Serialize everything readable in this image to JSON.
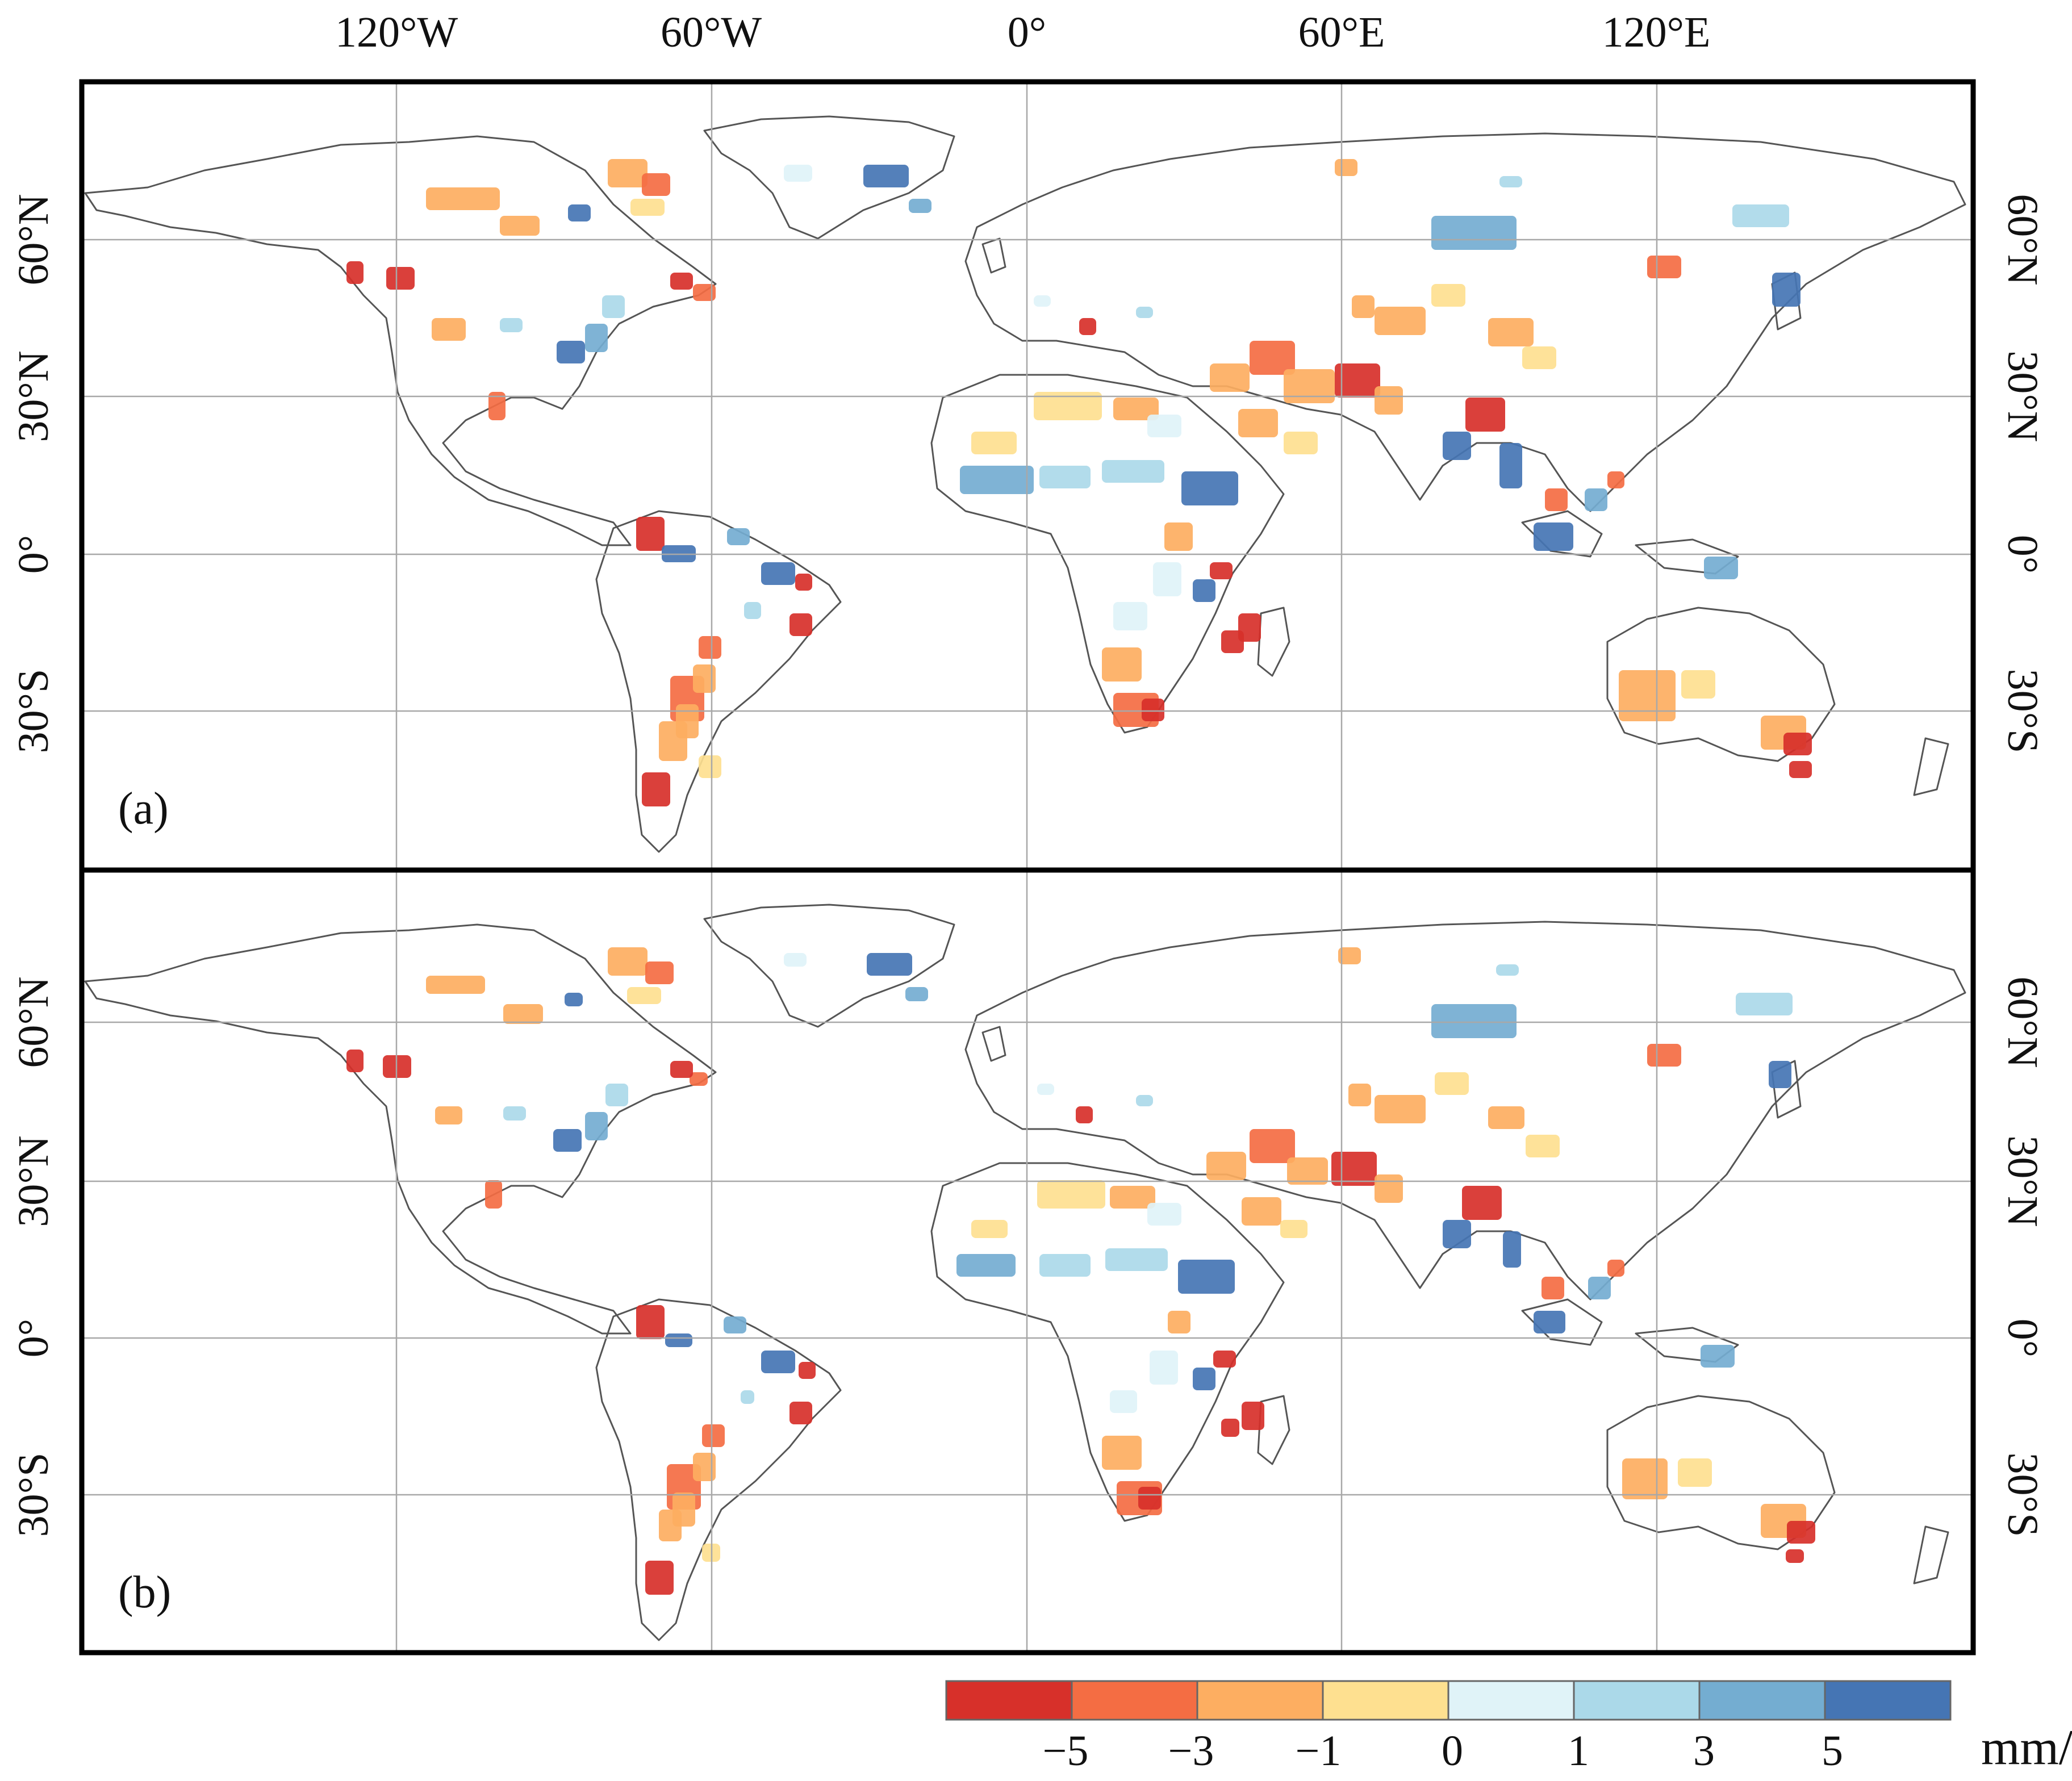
{
  "figure": {
    "longitude_labels": [
      "120°W",
      "60°W",
      "0°",
      "60°E",
      "120°E"
    ],
    "latitude_labels": [
      "60°N",
      "30°N",
      "0°",
      "30°S"
    ],
    "panels": [
      {
        "label": "(a)"
      },
      {
        "label": "(b)"
      }
    ]
  },
  "legend": {
    "unit": "mm/a",
    "bin_colors": [
      "#d7302a",
      "#f46d43",
      "#fdae61",
      "#fee090",
      "#e0f3f8",
      "#abd9e9",
      "#74add1",
      "#4575b4"
    ],
    "tick_labels": [
      "−5",
      "−3",
      "−1",
      "0",
      "1",
      "3",
      "5"
    ]
  },
  "chart_data": {
    "type": "heatmap",
    "title": "",
    "map_extent": {
      "lon": [
        -180,
        180
      ],
      "lat": [
        -58,
        84
      ]
    },
    "gridlines_lon": [
      -120,
      -60,
      0,
      60,
      120
    ],
    "gridlines_lat": [
      60,
      30,
      0,
      -30
    ],
    "color_bins": [
      {
        "range": "< -5",
        "color": "#d7302a"
      },
      {
        "range": "-5 to -3",
        "color": "#f46d43"
      },
      {
        "range": "-3 to -1",
        "color": "#fdae61"
      },
      {
        "range": "-1 to 0",
        "color": "#fee090"
      },
      {
        "range": "0 to 1",
        "color": "#e0f3f8"
      },
      {
        "range": "1 to 3",
        "color": "#abd9e9"
      },
      {
        "range": "3 to 5",
        "color": "#74add1"
      },
      {
        "range": "> 5",
        "color": "#4575b4"
      }
    ],
    "unit": "mm/a",
    "panels": [
      "(a)",
      "(b)"
    ]
  }
}
